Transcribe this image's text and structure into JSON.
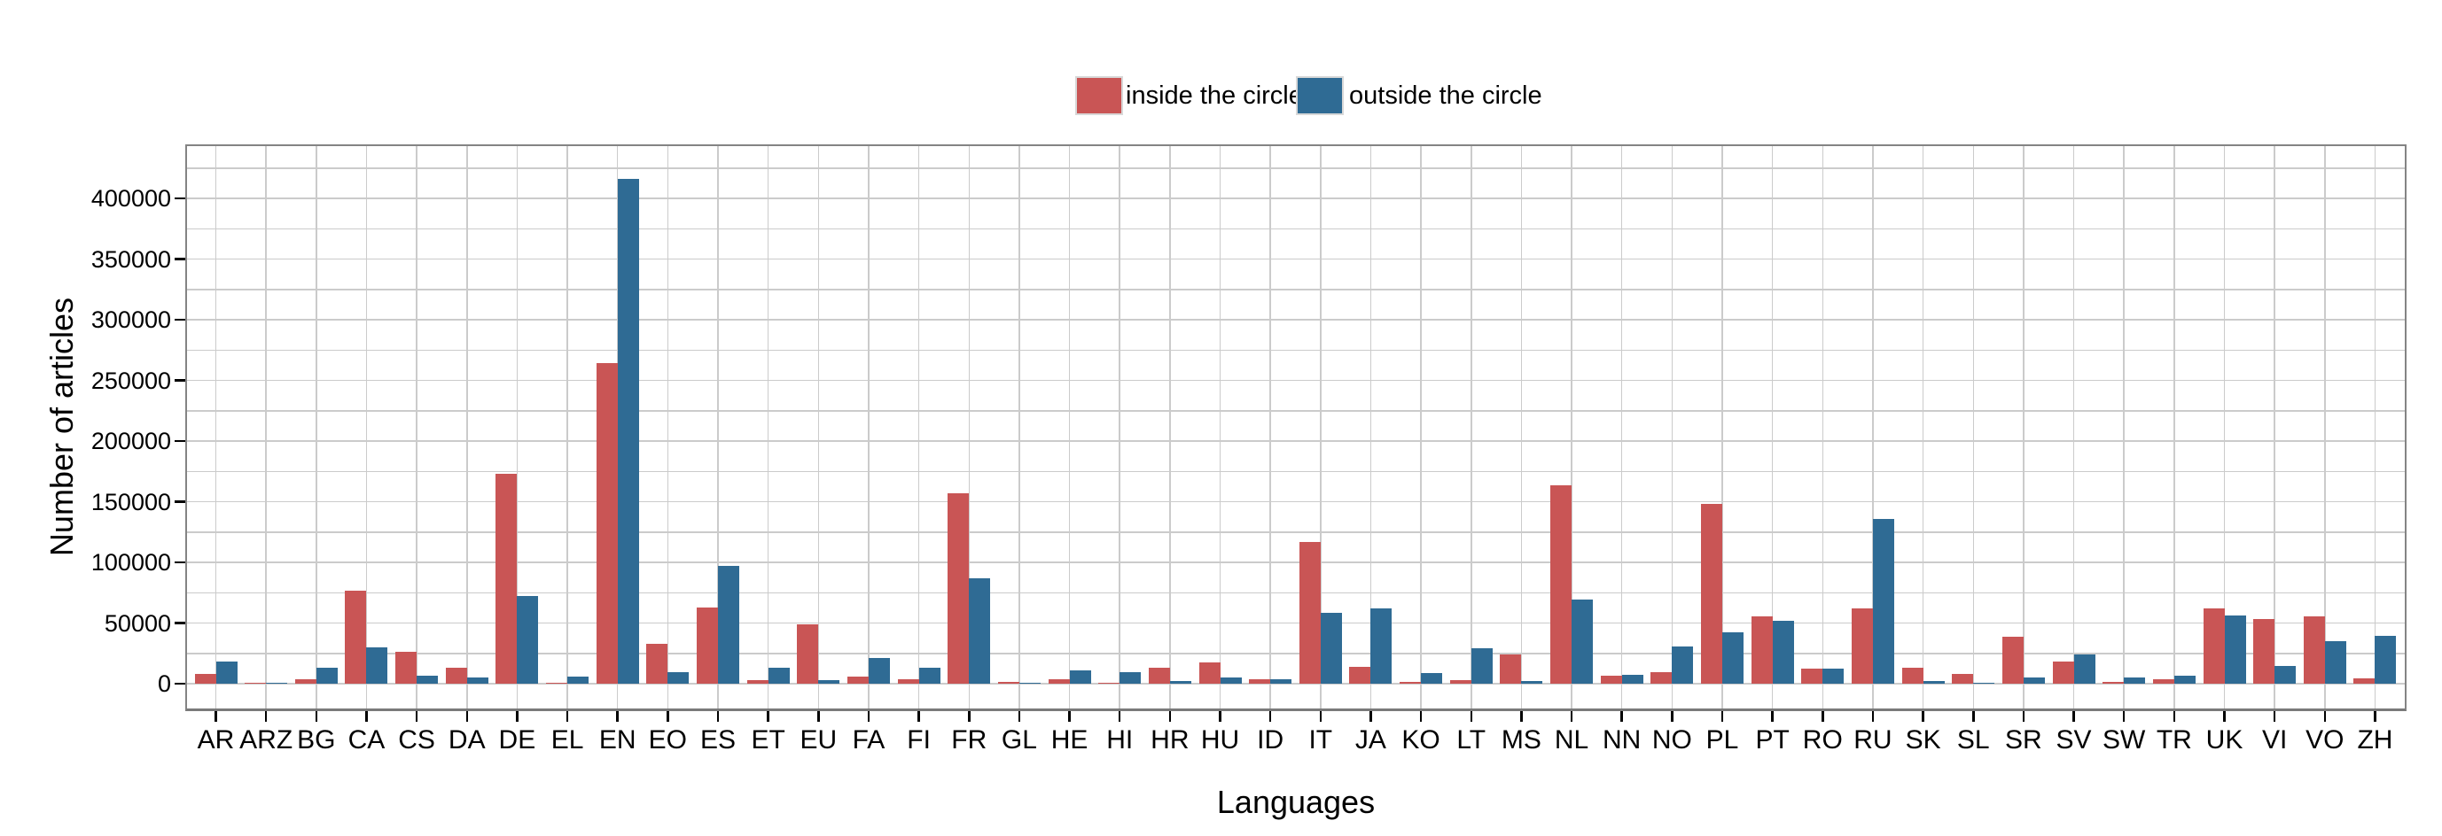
{
  "figure": {
    "y_axis_title": "Number of articles",
    "x_axis_title": "Languages"
  },
  "legend": {
    "inside_label": "inside the circle",
    "outside_label": "outside the circle"
  },
  "colors": {
    "inside": "#C95555",
    "outside": "#2F6B94",
    "gridline": "#CBCBCB",
    "panel_border": "#848484",
    "tick": "#000000"
  },
  "chart_data": {
    "type": "bar",
    "title": "",
    "xlabel": "Languages",
    "ylabel": "Number of articles",
    "categories": [
      "AR",
      "ARZ",
      "BG",
      "CA",
      "CS",
      "DA",
      "DE",
      "EL",
      "EN",
      "EO",
      "ES",
      "ET",
      "EU",
      "FA",
      "FI",
      "FR",
      "GL",
      "HE",
      "HI",
      "HR",
      "HU",
      "ID",
      "IT",
      "JA",
      "KO",
      "LT",
      "MS",
      "NL",
      "NN",
      "NO",
      "PL",
      "PT",
      "RO",
      "RU",
      "SK",
      "SL",
      "SR",
      "SV",
      "SW",
      "TR",
      "UK",
      "VI",
      "VO",
      "ZH"
    ],
    "series": [
      {
        "name": "inside the circle",
        "color": "#C95555",
        "values": [
          8000,
          900,
          3300,
          77000,
          26500,
          13500,
          173000,
          1000,
          264000,
          33000,
          63000,
          2700,
          49000,
          6100,
          3600,
          157000,
          1400,
          3600,
          500,
          13000,
          17500,
          3600,
          116500,
          14000,
          1400,
          3200,
          24000,
          163500,
          6300,
          9700,
          148000,
          55500,
          12200,
          62000,
          13000,
          8000,
          39000,
          18500,
          1200,
          3900,
          62000,
          53500,
          55500,
          4100
        ]
      },
      {
        "name": "outside the circle",
        "color": "#2F6B94",
        "values": [
          18500,
          500,
          12800,
          30000,
          6300,
          5100,
          72000,
          5600,
          416000,
          9200,
          97000,
          13100,
          2900,
          21000,
          13000,
          87000,
          500,
          11200,
          9700,
          2000,
          5400,
          3900,
          58500,
          62000,
          8800,
          29000,
          2000,
          69500,
          7300,
          30500,
          42000,
          52000,
          12200,
          136000,
          2400,
          700,
          5100,
          24300,
          5100,
          6300,
          56000,
          14600,
          35300,
          39400
        ]
      }
    ],
    "yticks": [
      0,
      50000,
      100000,
      150000,
      200000,
      250000,
      300000,
      350000,
      400000
    ],
    "ylim": [
      0,
      425000
    ],
    "grid": "horizontal and vertical, minor interval 25000, on",
    "legend_position": "top-center"
  }
}
